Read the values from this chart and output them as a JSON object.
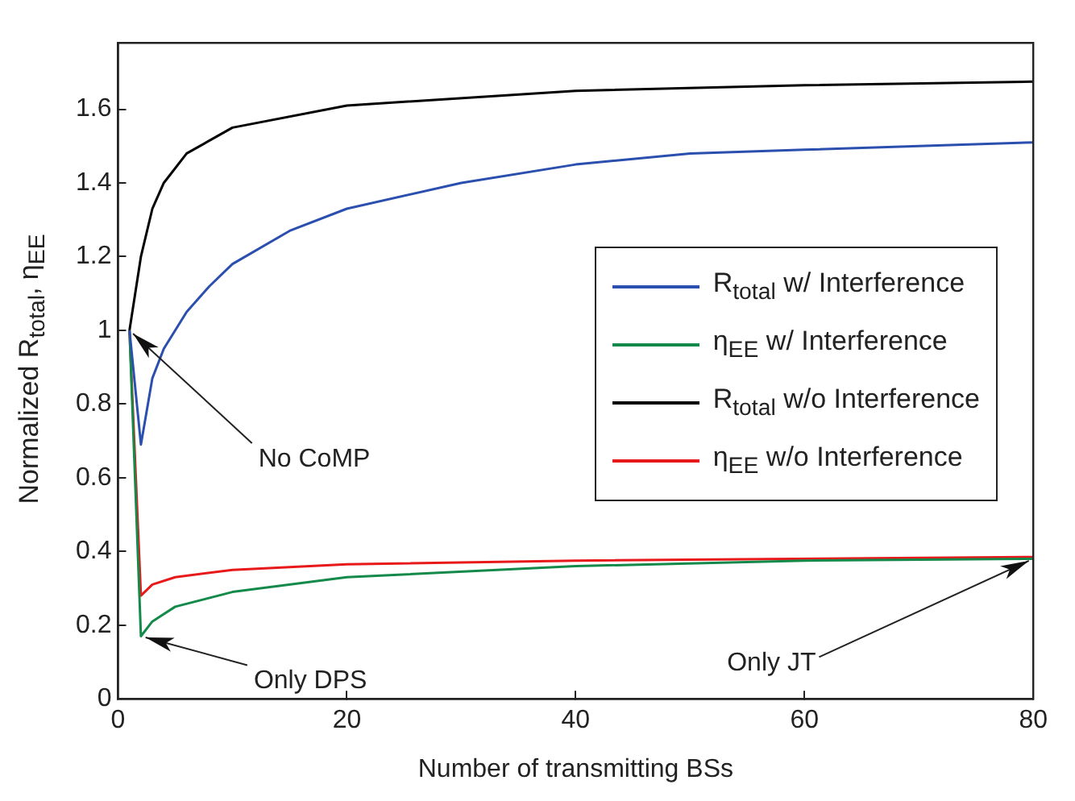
{
  "chart_data": {
    "type": "line",
    "xlabel": "Number of transmitting BSs",
    "ylabel": "Normalized R$_{total}$, η$_{EE}$",
    "xlim": [
      0,
      80
    ],
    "xticks": [
      0,
      20,
      40,
      60,
      80
    ],
    "ylim": [
      0,
      1.78
    ],
    "yticks": [
      0,
      0.2,
      0.4,
      0.6,
      0.8,
      1,
      1.2,
      1.4,
      1.6
    ],
    "grid": false,
    "legend": "right",
    "marker": "none",
    "line_style": "solid",
    "annotations": [
      {
        "text": "No CoMP",
        "x": 1,
        "y": 1
      },
      {
        "text": "Only DPS",
        "x": 2,
        "y": 0.17
      },
      {
        "text": "Only JT",
        "x": 80,
        "y": 0.38
      }
    ],
    "series": [
      {
        "name": "R$_{total}$ w/ Interference",
        "color": "#2b4fae",
        "x": [
          1,
          2,
          3,
          4,
          6,
          8,
          10,
          15,
          20,
          30,
          40,
          50,
          60,
          70,
          80
        ],
        "values": [
          1,
          0.69,
          0.87,
          0.95,
          1.05,
          1.12,
          1.18,
          1.27,
          1.33,
          1.4,
          1.45,
          1.48,
          1.49,
          1.5,
          1.51
        ]
      },
      {
        "name": "η$_{EE}$ w/ Interference",
        "color": "#138a4a",
        "x": [
          1,
          2,
          3,
          5,
          10,
          20,
          40,
          60,
          80
        ],
        "values": [
          1,
          0.17,
          0.21,
          0.25,
          0.29,
          0.33,
          0.36,
          0.375,
          0.38
        ]
      },
      {
        "name": "R$_{total}$ w/o Interference",
        "color": "#000000",
        "x": [
          1,
          2,
          3,
          4,
          6,
          10,
          20,
          40,
          60,
          80
        ],
        "values": [
          1,
          1.2,
          1.33,
          1.4,
          1.48,
          1.55,
          1.61,
          1.65,
          1.665,
          1.675
        ]
      },
      {
        "name": "η$_{EE}$ w/o Interference",
        "color": "#e8191b",
        "x": [
          1,
          2,
          3,
          5,
          10,
          20,
          40,
          80
        ],
        "values": [
          1,
          0.28,
          0.31,
          0.33,
          0.35,
          0.365,
          0.375,
          0.385
        ]
      }
    ]
  }
}
